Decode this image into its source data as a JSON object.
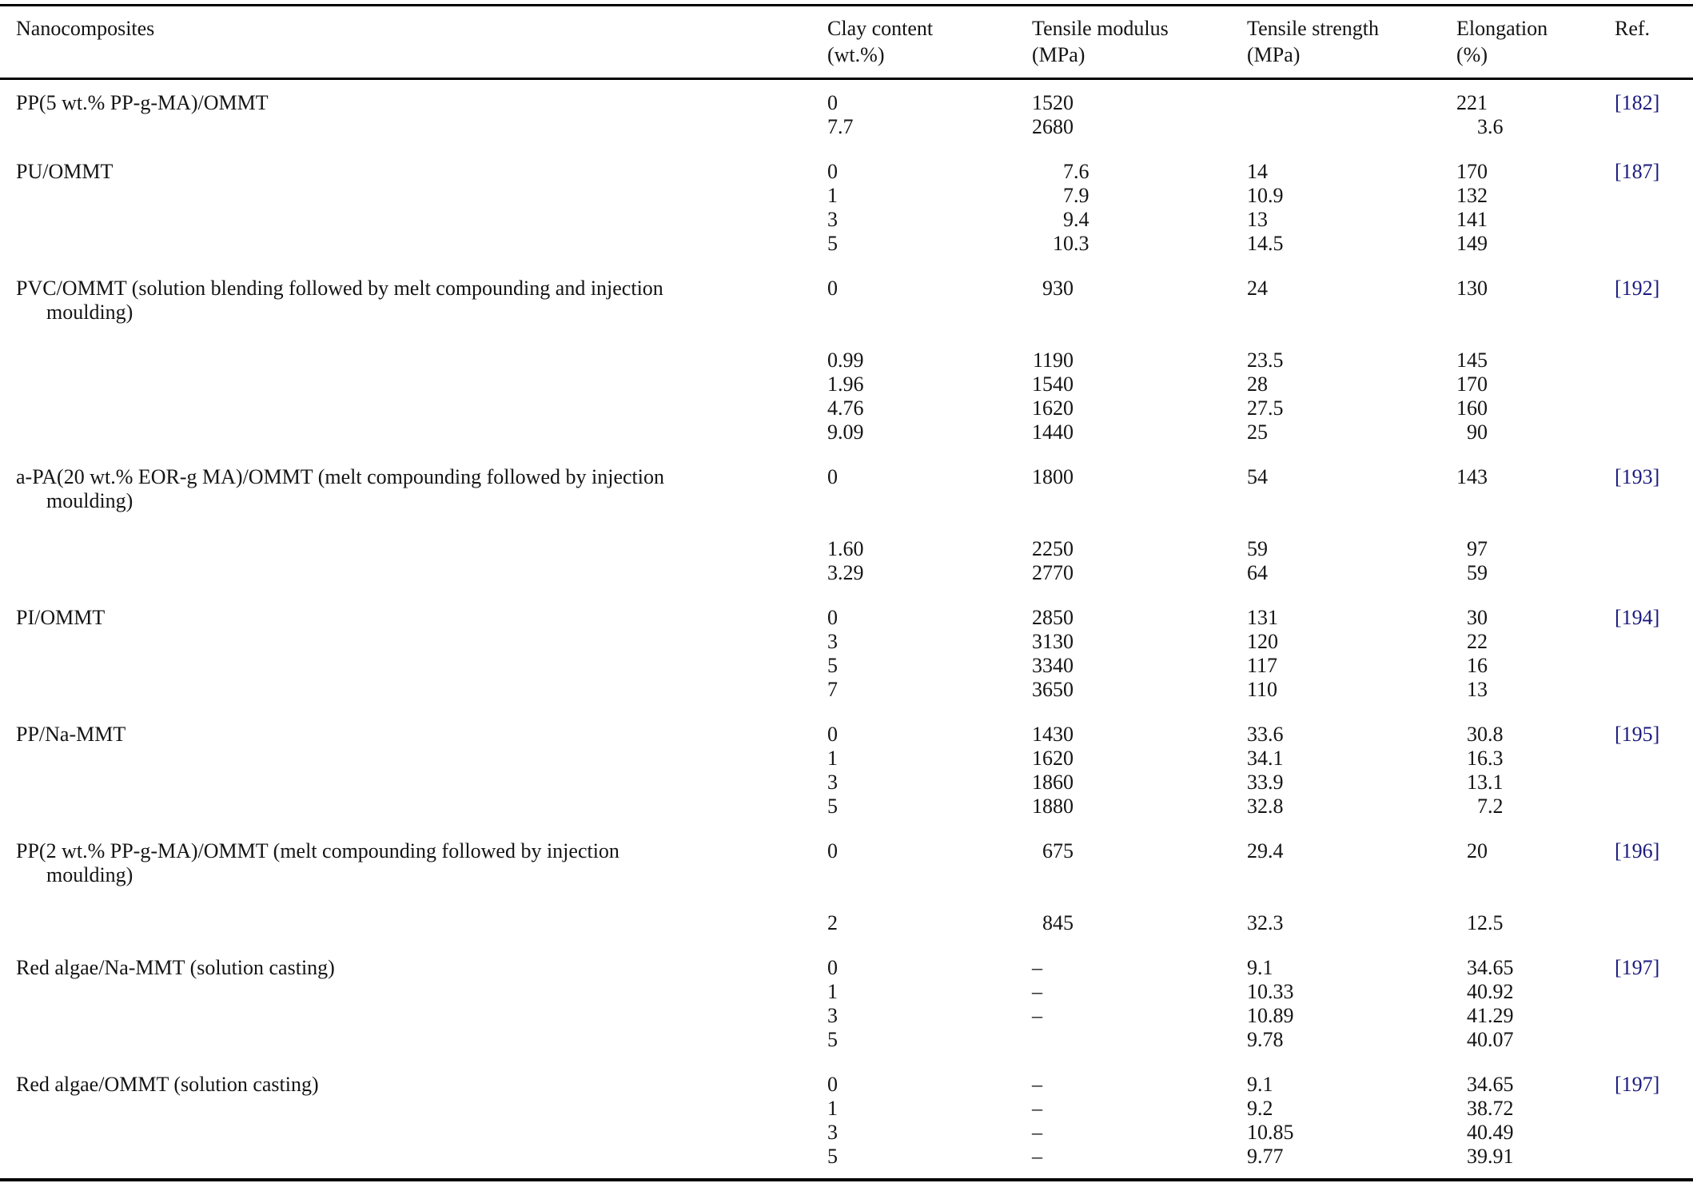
{
  "table": {
    "columns": [
      {
        "label": "Nanocomposites",
        "sub": ""
      },
      {
        "label": "Clay content",
        "sub": "(wt.%)"
      },
      {
        "label": "Tensile modulus",
        "sub": "(MPa)"
      },
      {
        "label": "Tensile strength",
        "sub": "(MPa)"
      },
      {
        "label": "Elongation",
        "sub": "(%)"
      },
      {
        "label": "Ref.",
        "sub": ""
      }
    ],
    "groups": [
      {
        "name_lines": [
          "PP(5 wt.% PP-g-MA)/OMMT"
        ],
        "ref": "[182]",
        "rows": [
          {
            "clay": "0",
            "modulus": "1520",
            "strength": "",
            "elongation": "221"
          },
          {
            "clay": "7.7",
            "modulus": "2680",
            "strength": "",
            "elongation": "3.6"
          }
        ]
      },
      {
        "name_lines": [
          "PU/OMMT"
        ],
        "ref": "[187]",
        "rows": [
          {
            "clay": "0",
            "modulus": "7.6",
            "strength": "14",
            "elongation": "170"
          },
          {
            "clay": "1",
            "modulus": "7.9",
            "strength": "10.9",
            "elongation": "132"
          },
          {
            "clay": "3",
            "modulus": "9.4",
            "strength": "13",
            "elongation": "141"
          },
          {
            "clay": "5",
            "modulus": "10.3",
            "strength": "14.5",
            "elongation": "149"
          }
        ]
      },
      {
        "name_lines": [
          "PVC/OMMT (solution blending followed by melt compounding and injection",
          "moulding)"
        ],
        "ref": "[192]",
        "rows": [
          {
            "clay": "0",
            "modulus": "930",
            "strength": "24",
            "elongation": "130"
          },
          {
            "clay": "0.99",
            "modulus": "1190",
            "strength": "23.5",
            "elongation": "145"
          },
          {
            "clay": "1.96",
            "modulus": "1540",
            "strength": "28",
            "elongation": "170"
          },
          {
            "clay": "4.76",
            "modulus": "1620",
            "strength": "27.5",
            "elongation": "160"
          },
          {
            "clay": "9.09",
            "modulus": "1440",
            "strength": "25",
            "elongation": "90"
          }
        ]
      },
      {
        "name_lines": [
          "a-PA(20 wt.% EOR-g MA)/OMMT (melt compounding followed by injection",
          "moulding)"
        ],
        "ref": "[193]",
        "rows": [
          {
            "clay": "0",
            "modulus": "1800",
            "strength": "54",
            "elongation": "143"
          },
          {
            "clay": "1.60",
            "modulus": "2250",
            "strength": "59",
            "elongation": "97"
          },
          {
            "clay": "3.29",
            "modulus": "2770",
            "strength": "64",
            "elongation": "59"
          }
        ]
      },
      {
        "name_lines": [
          "PI/OMMT"
        ],
        "ref": "[194]",
        "rows": [
          {
            "clay": "0",
            "modulus": "2850",
            "strength": "131",
            "elongation": "30"
          },
          {
            "clay": "3",
            "modulus": "3130",
            "strength": "120",
            "elongation": "22"
          },
          {
            "clay": "5",
            "modulus": "3340",
            "strength": "117",
            "elongation": "16"
          },
          {
            "clay": "7",
            "modulus": "3650",
            "strength": "110",
            "elongation": "13"
          }
        ]
      },
      {
        "name_lines": [
          "PP/Na-MMT"
        ],
        "ref": "[195]",
        "rows": [
          {
            "clay": "0",
            "modulus": "1430",
            "strength": "33.6",
            "elongation": "30.8"
          },
          {
            "clay": "1",
            "modulus": "1620",
            "strength": "34.1",
            "elongation": "16.3"
          },
          {
            "clay": "3",
            "modulus": "1860",
            "strength": "33.9",
            "elongation": "13.1"
          },
          {
            "clay": "5",
            "modulus": "1880",
            "strength": "32.8",
            "elongation": "7.2"
          }
        ]
      },
      {
        "name_lines": [
          "PP(2 wt.% PP-g-MA)/OMMT (melt compounding followed by injection",
          "moulding)"
        ],
        "ref": "[196]",
        "rows": [
          {
            "clay": "0",
            "modulus": "675",
            "strength": "29.4",
            "elongation": "20"
          },
          {
            "clay": "2",
            "modulus": "845",
            "strength": "32.3",
            "elongation": "12.5"
          }
        ]
      },
      {
        "name_lines": [
          "Red algae/Na-MMT (solution casting)"
        ],
        "ref": "[197]",
        "rows": [
          {
            "clay": "0",
            "modulus": "–",
            "strength": "9.1",
            "elongation": "34.65"
          },
          {
            "clay": "1",
            "modulus": "–",
            "strength": "10.33",
            "elongation": "40.92"
          },
          {
            "clay": "3",
            "modulus": "–",
            "strength": "10.89",
            "elongation": "41.29"
          },
          {
            "clay": "5",
            "modulus": "",
            "strength": "9.78",
            "elongation": "40.07"
          }
        ]
      },
      {
        "name_lines": [
          "Red algae/OMMT (solution casting)"
        ],
        "ref": "[197]",
        "rows": [
          {
            "clay": "0",
            "modulus": "–",
            "strength": "9.1",
            "elongation": "34.65"
          },
          {
            "clay": "1",
            "modulus": "–",
            "strength": "9.2",
            "elongation": "38.72"
          },
          {
            "clay": "3",
            "modulus": "–",
            "strength": "10.85",
            "elongation": "40.49"
          },
          {
            "clay": "5",
            "modulus": "–",
            "strength": "9.77",
            "elongation": "39.91"
          }
        ]
      }
    ]
  },
  "colors": {
    "ref_link": "#1a1a7e",
    "rule": "#000000",
    "text": "#141414"
  }
}
